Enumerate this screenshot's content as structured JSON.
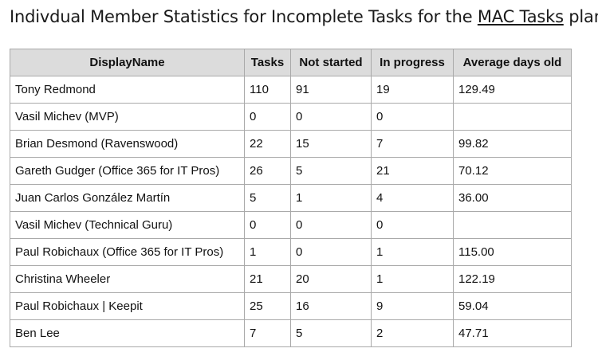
{
  "title": {
    "prefix": "Indivdual Member Statistics for Incomplete Tasks for the ",
    "plan_name": "MAC Tasks",
    "suffix": " plan"
  },
  "table": {
    "headers": [
      "DisplayName",
      "Tasks",
      "Not started",
      "In progress",
      "Average days old"
    ],
    "rows": [
      [
        "Tony Redmond",
        "110",
        "91",
        "19",
        "129.49"
      ],
      [
        "Vasil Michev (MVP)",
        "0",
        "0",
        "0",
        ""
      ],
      [
        "Brian Desmond (Ravenswood)",
        "22",
        "15",
        "7",
        "99.82"
      ],
      [
        "Gareth Gudger (Office 365 for IT Pros)",
        "26",
        "5",
        "21",
        "70.12"
      ],
      [
        "Juan Carlos González Martín",
        "5",
        "1",
        "4",
        "36.00"
      ],
      [
        "Vasil Michev (Technical Guru)",
        "0",
        "0",
        "0",
        ""
      ],
      [
        "Paul Robichaux (Office 365 for IT Pros)",
        "1",
        "0",
        "1",
        "115.00"
      ],
      [
        "Christina Wheeler",
        "21",
        "20",
        "1",
        "122.19"
      ],
      [
        "Paul Robichaux | Keepit",
        "25",
        "16",
        "9",
        "59.04"
      ],
      [
        "Ben Lee",
        "7",
        "5",
        "2",
        "47.71"
      ]
    ]
  }
}
